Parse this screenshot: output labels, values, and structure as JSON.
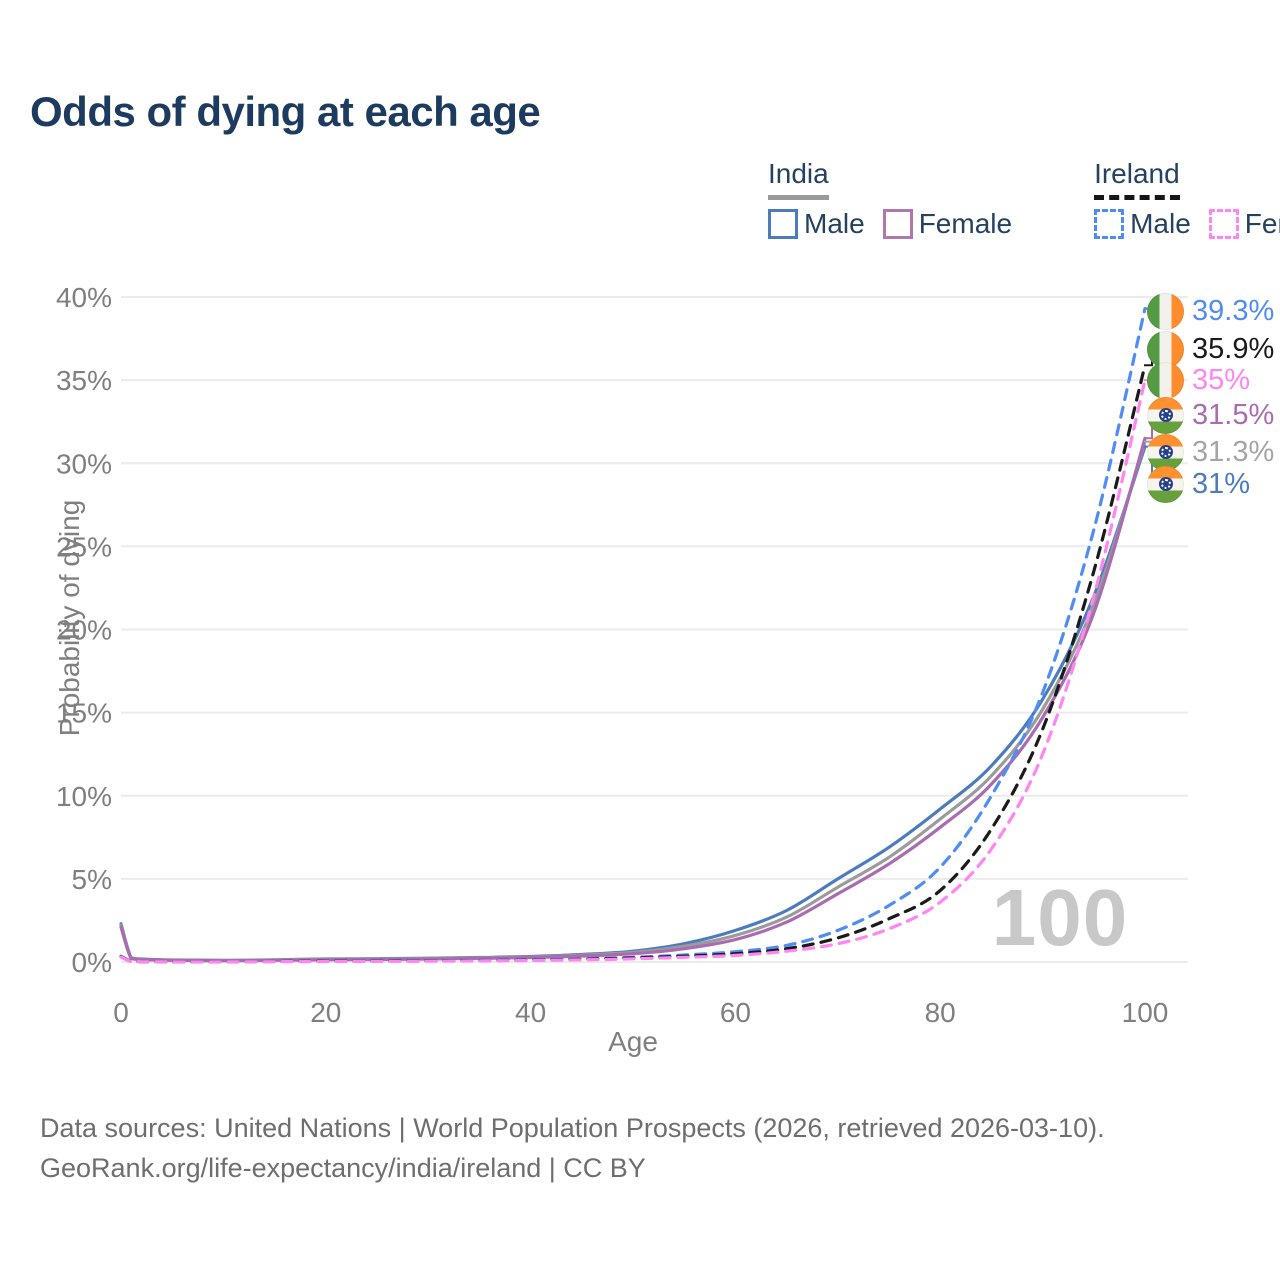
{
  "title": "Odds of dying at each age",
  "colors": {
    "title_navy": "#1d3b5e",
    "india_male": "#4d7cbe",
    "india_both": "#9b9b9b",
    "india_female": "#a96cb0",
    "ireland_male": "#4f8df5",
    "ireland_both": "#1a1a1a",
    "ireland_female": "#ff85f0",
    "gridline": "#ebebeb",
    "tick_text": "#7f7f7f",
    "watermark_gray": "#c8c8c8"
  },
  "legend": {
    "groups": [
      {
        "label": "India",
        "underline_style": "solid",
        "underline_color": "#9a9a9a",
        "items": [
          {
            "label": "Male",
            "color": "#4d7cbe",
            "dashed": false
          },
          {
            "label": "Female",
            "color": "#b176ae",
            "dashed": false
          }
        ]
      },
      {
        "label": "Ireland",
        "underline_style": "dashed",
        "underline_color": "#161616",
        "items": [
          {
            "label": "Male",
            "color": "#4f8df5",
            "dashed": true
          },
          {
            "label": "Female",
            "color": "#ff85f0",
            "dashed": true
          }
        ]
      }
    ]
  },
  "chart_data": {
    "type": "line",
    "title": "Odds of dying at each age",
    "xlabel": "Age",
    "ylabel": "Probability of dying",
    "xlim": [
      0,
      100
    ],
    "ylim": [
      0,
      40
    ],
    "xticks": [
      0,
      20,
      40,
      60,
      80,
      100
    ],
    "yticks": [
      0,
      5,
      10,
      15,
      20,
      25,
      30,
      35,
      40
    ],
    "ytick_suffix": "%",
    "grid": "horizontal-only",
    "legend_position": "top-right",
    "watermark": "100",
    "x": [
      0,
      1,
      2,
      5,
      10,
      15,
      20,
      25,
      30,
      35,
      40,
      45,
      50,
      55,
      60,
      65,
      70,
      75,
      80,
      85,
      90,
      95,
      100
    ],
    "series": [
      {
        "name": "India Male",
        "color": "#4d7cbe",
        "dashed": false,
        "values": [
          2.3,
          0.25,
          0.18,
          0.12,
          0.1,
          0.13,
          0.18,
          0.2,
          0.23,
          0.27,
          0.33,
          0.45,
          0.65,
          1.1,
          1.9,
          3.1,
          5.0,
          6.9,
          9.2,
          11.8,
          15.8,
          22.0,
          31.0
        ]
      },
      {
        "name": "India",
        "color": "#9b9b9b",
        "dashed": false,
        "values": [
          2.2,
          0.23,
          0.16,
          0.11,
          0.09,
          0.12,
          0.16,
          0.18,
          0.21,
          0.25,
          0.3,
          0.41,
          0.58,
          0.95,
          1.6,
          2.7,
          4.5,
          6.3,
          8.6,
          11.2,
          15.2,
          21.5,
          31.3
        ]
      },
      {
        "name": "India Female",
        "color": "#a96cb0",
        "dashed": false,
        "values": [
          2.1,
          0.21,
          0.15,
          0.1,
          0.08,
          0.1,
          0.13,
          0.15,
          0.18,
          0.22,
          0.27,
          0.36,
          0.5,
          0.8,
          1.35,
          2.4,
          4.1,
          5.9,
          8.1,
          10.7,
          14.7,
          21.0,
          31.5
        ]
      },
      {
        "name": "Ireland Male",
        "color": "#4f8df5",
        "dashed": true,
        "values": [
          0.35,
          0.04,
          0.03,
          0.02,
          0.02,
          0.04,
          0.06,
          0.07,
          0.08,
          0.1,
          0.13,
          0.18,
          0.28,
          0.42,
          0.62,
          1.0,
          1.9,
          3.4,
          5.7,
          10.0,
          16.2,
          26.0,
          39.3
        ]
      },
      {
        "name": "Ireland",
        "color": "#1a1a1a",
        "dashed": true,
        "values": [
          0.32,
          0.035,
          0.025,
          0.02,
          0.02,
          0.03,
          0.05,
          0.06,
          0.07,
          0.09,
          0.11,
          0.16,
          0.24,
          0.35,
          0.5,
          0.8,
          1.45,
          2.6,
          4.3,
          8.0,
          14.0,
          23.5,
          35.9
        ]
      },
      {
        "name": "Ireland Female",
        "color": "#ff85f0",
        "dashed": true,
        "values": [
          0.3,
          0.03,
          0.02,
          0.015,
          0.015,
          0.02,
          0.03,
          0.04,
          0.05,
          0.07,
          0.09,
          0.13,
          0.19,
          0.28,
          0.4,
          0.65,
          1.1,
          2.0,
          3.6,
          6.8,
          12.5,
          22.0,
          35.0
        ]
      }
    ],
    "end_labels": [
      {
        "text": "39.3%",
        "color": "#4f8df5",
        "flag": "ireland",
        "series": "Ireland Male"
      },
      {
        "text": "35.9%",
        "color": "#1a1a1a",
        "flag": "ireland",
        "series": "Ireland"
      },
      {
        "text": "35%",
        "color": "#ff85f0",
        "flag": "ireland",
        "series": "Ireland Female"
      },
      {
        "text": "31.5%",
        "color": "#a96cb0",
        "flag": "india",
        "series": "India Female"
      },
      {
        "text": "31.3%",
        "color": "#a5a5a5",
        "flag": "india",
        "series": "India"
      },
      {
        "text": "31%",
        "color": "#4d7cbe",
        "flag": "india",
        "series": "India Male"
      }
    ]
  },
  "footer": {
    "line1": "Data sources: United Nations | World Population Prospects (2026, retrieved 2026-03-10).",
    "line2": "GeoRank.org/life-expectancy/india/ireland | CC BY"
  }
}
